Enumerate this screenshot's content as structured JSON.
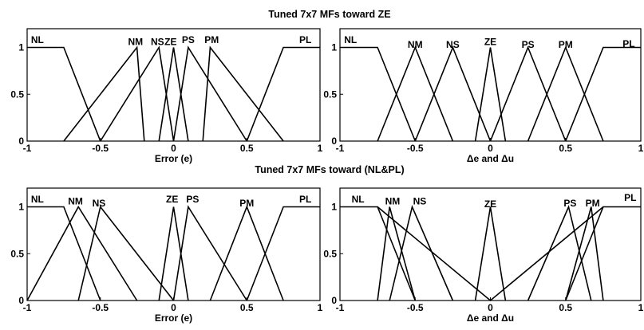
{
  "titles": {
    "top": "Tuned 7x7 MFs toward ZE",
    "bottom": "Tuned 7x7 MFs toward (NL&PL)"
  },
  "chart_data": [
    {
      "type": "line",
      "xlabel": "Error (e)",
      "xlim": [
        -1,
        1
      ],
      "ylim": [
        0,
        1.2
      ],
      "xticks": [
        "-1",
        "-0.5",
        "0",
        "0.5",
        "1"
      ],
      "yticks": [
        "0",
        "0.5",
        "1"
      ],
      "series": [
        {
          "name": "NL",
          "x": [
            -1,
            -0.75,
            -0.5
          ],
          "y": [
            1,
            1,
            0
          ]
        },
        {
          "name": "NM",
          "x": [
            -0.75,
            -0.25,
            -0.2
          ],
          "y": [
            0,
            1,
            0
          ]
        },
        {
          "name": "NS",
          "x": [
            -0.5,
            -0.1,
            0
          ],
          "y": [
            0,
            1,
            0
          ]
        },
        {
          "name": "ZE",
          "x": [
            -0.1,
            0,
            0.1
          ],
          "y": [
            0,
            1,
            0
          ]
        },
        {
          "name": "PS",
          "x": [
            0,
            0.1,
            0.5
          ],
          "y": [
            0,
            1,
            0
          ]
        },
        {
          "name": "PM",
          "x": [
            0.2,
            0.25,
            0.75
          ],
          "y": [
            0,
            1,
            0
          ]
        },
        {
          "name": "PL",
          "x": [
            0.5,
            0.75,
            1
          ],
          "y": [
            0,
            1,
            1
          ]
        }
      ],
      "labels": [
        {
          "text": "NL",
          "x": -0.93,
          "y": 1.08
        },
        {
          "text": "NM",
          "x": -0.26,
          "y": 1.06
        },
        {
          "text": "NS",
          "x": -0.11,
          "y": 1.06
        },
        {
          "text": "ZE",
          "x": -0.02,
          "y": 1.06
        },
        {
          "text": "PS",
          "x": 0.1,
          "y": 1.08
        },
        {
          "text": "PM",
          "x": 0.26,
          "y": 1.08
        },
        {
          "text": "PL",
          "x": 0.9,
          "y": 1.08
        }
      ]
    },
    {
      "type": "line",
      "xlabel": "Δe and Δu",
      "xlim": [
        -1,
        1
      ],
      "ylim": [
        0,
        1.2
      ],
      "xticks": [
        "-1",
        "-0.5",
        "0",
        "0.5",
        "1"
      ],
      "yticks": [
        "0",
        "0.5",
        "1"
      ],
      "series": [
        {
          "name": "NL",
          "x": [
            -1,
            -0.75,
            -0.5
          ],
          "y": [
            1,
            1,
            0
          ]
        },
        {
          "name": "NM",
          "x": [
            -0.75,
            -0.5,
            -0.25
          ],
          "y": [
            0,
            1,
            0
          ]
        },
        {
          "name": "NS",
          "x": [
            -0.5,
            -0.25,
            0
          ],
          "y": [
            0,
            1,
            0
          ]
        },
        {
          "name": "ZE",
          "x": [
            -0.1,
            0,
            0.1
          ],
          "y": [
            0,
            1,
            0
          ]
        },
        {
          "name": "PS",
          "x": [
            0,
            0.25,
            0.5
          ],
          "y": [
            0,
            1,
            0
          ]
        },
        {
          "name": "PM",
          "x": [
            0.25,
            0.5,
            0.75
          ],
          "y": [
            0,
            1,
            0
          ]
        },
        {
          "name": "PL",
          "x": [
            0.5,
            0.75,
            1
          ],
          "y": [
            0,
            1,
            1
          ]
        }
      ],
      "labels": [
        {
          "text": "NL",
          "x": -0.93,
          "y": 1.08
        },
        {
          "text": "NM",
          "x": -0.5,
          "y": 1.03
        },
        {
          "text": "NS",
          "x": -0.25,
          "y": 1.03
        },
        {
          "text": "ZE",
          "x": 0,
          "y": 1.06
        },
        {
          "text": "PS",
          "x": 0.25,
          "y": 1.03
        },
        {
          "text": "PM",
          "x": 0.5,
          "y": 1.03
        },
        {
          "text": "PL",
          "x": 0.92,
          "y": 1.04
        }
      ]
    },
    {
      "type": "line",
      "xlabel": "Error (e)",
      "xlim": [
        -1,
        1
      ],
      "ylim": [
        0,
        1.2
      ],
      "xticks": [
        "-1",
        "-0.5",
        "0",
        "0.5",
        "1"
      ],
      "yticks": [
        "0",
        "0.5",
        "1"
      ],
      "series": [
        {
          "name": "NL",
          "x": [
            -1,
            -0.75,
            -0.5
          ],
          "y": [
            1,
            1,
            0
          ]
        },
        {
          "name": "NM",
          "x": [
            -1,
            -0.65,
            -0.25
          ],
          "y": [
            0,
            1,
            0
          ]
        },
        {
          "name": "NS",
          "x": [
            -0.65,
            -0.5,
            0
          ],
          "y": [
            0,
            1,
            0
          ]
        },
        {
          "name": "ZE",
          "x": [
            -0.1,
            0,
            0.1
          ],
          "y": [
            0,
            1,
            0
          ]
        },
        {
          "name": "PS",
          "x": [
            0,
            0.1,
            0.5
          ],
          "y": [
            0,
            1,
            0
          ]
        },
        {
          "name": "PM",
          "x": [
            0.25,
            0.5,
            0.75
          ],
          "y": [
            0,
            1,
            0
          ]
        },
        {
          "name": "PL",
          "x": [
            0.5,
            0.75,
            1
          ],
          "y": [
            0,
            1,
            1
          ]
        }
      ],
      "labels": [
        {
          "text": "NL",
          "x": -0.93,
          "y": 1.08
        },
        {
          "text": "NM",
          "x": -0.67,
          "y": 1.06
        },
        {
          "text": "NS",
          "x": -0.51,
          "y": 1.04
        },
        {
          "text": "ZE",
          "x": -0.01,
          "y": 1.08
        },
        {
          "text": "PS",
          "x": 0.13,
          "y": 1.08
        },
        {
          "text": "PM",
          "x": 0.5,
          "y": 1.04
        },
        {
          "text": "PL",
          "x": 0.9,
          "y": 1.08
        }
      ]
    },
    {
      "type": "line",
      "xlabel": "Δe and Δu",
      "xlim": [
        -1,
        1
      ],
      "ylim": [
        0,
        1.2
      ],
      "xticks": [
        "-1",
        "-0.5",
        "0",
        "0.5",
        "1"
      ],
      "yticks": [
        "0",
        "0.5",
        "1"
      ],
      "series": [
        {
          "name": "NL",
          "x": [
            -1,
            -0.75,
            -0.5
          ],
          "y": [
            1,
            1,
            0
          ]
        },
        {
          "name": "NM",
          "x": [
            -0.75,
            -0.67,
            -0.5
          ],
          "y": [
            0,
            1,
            0
          ]
        },
        {
          "name": "NS",
          "x": [
            -0.67,
            -0.52,
            -0.25
          ],
          "y": [
            0,
            1,
            0
          ]
        },
        {
          "name": "ZE",
          "x": [
            -0.1,
            0,
            0.1
          ],
          "y": [
            0,
            1,
            0
          ]
        },
        {
          "name": "PS",
          "x": [
            0.25,
            0.52,
            0.67
          ],
          "y": [
            0,
            1,
            0
          ]
        },
        {
          "name": "PM",
          "x": [
            0.5,
            0.67,
            0.75
          ],
          "y": [
            0,
            1,
            0
          ]
        },
        {
          "name": "PL",
          "x": [
            0.5,
            0.75,
            1
          ],
          "y": [
            0,
            1,
            1
          ]
        },
        {
          "name": "",
          "x": [
            -0.75,
            0,
            0.75
          ],
          "y": [
            1,
            0,
            1
          ]
        }
      ],
      "labels": [
        {
          "text": "NL",
          "x": -0.88,
          "y": 1.08
        },
        {
          "text": "NM",
          "x": -0.65,
          "y": 1.06
        },
        {
          "text": "NS",
          "x": -0.47,
          "y": 1.06
        },
        {
          "text": "ZE",
          "x": 0,
          "y": 1.03
        },
        {
          "text": "PS",
          "x": 0.53,
          "y": 1.04
        },
        {
          "text": "PM",
          "x": 0.68,
          "y": 1.04
        },
        {
          "text": "PL",
          "x": 0.93,
          "y": 1.1
        }
      ]
    }
  ]
}
